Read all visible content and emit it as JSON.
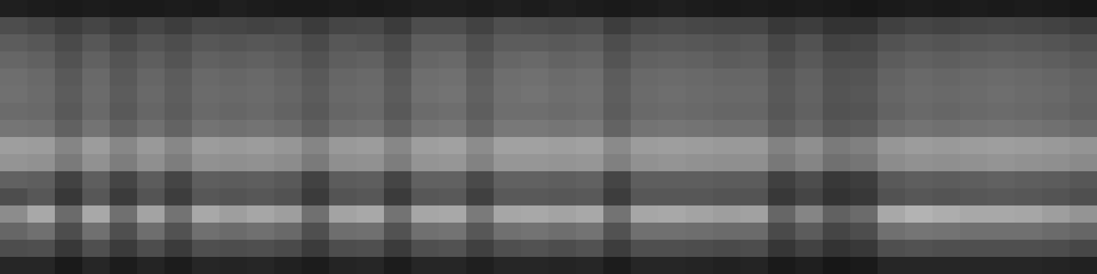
{
  "chart_data": {
    "type": "heatmap",
    "tick_labels": false,
    "zlim": [
      0,
      100
    ],
    "cells": [
      [
        12,
        11,
        10,
        11,
        10,
        10,
        11,
        10,
        12,
        11,
        10,
        10,
        11,
        10,
        11,
        12,
        12,
        11,
        12,
        11,
        12,
        11,
        10,
        11,
        12,
        11,
        10,
        11,
        10,
        11,
        10,
        9,
        10,
        11,
        10,
        11,
        10,
        11,
        10,
        9
      ],
      [
        30,
        28,
        24,
        27,
        23,
        27,
        24,
        28,
        27,
        26,
        27,
        23,
        27,
        28,
        23,
        30,
        30,
        26,
        31,
        30,
        29,
        30,
        24,
        28,
        29,
        28,
        27,
        27,
        22,
        24,
        20,
        20,
        25,
        27,
        26,
        27,
        28,
        27,
        26,
        24
      ],
      [
        36,
        34,
        29,
        34,
        29,
        33,
        30,
        34,
        33,
        34,
        33,
        29,
        34,
        33,
        29,
        37,
        37,
        31,
        36,
        36,
        35,
        36,
        30,
        34,
        35,
        34,
        33,
        34,
        28,
        32,
        26,
        27,
        32,
        34,
        33,
        34,
        35,
        34,
        33,
        31
      ],
      [
        40,
        38,
        32,
        38,
        33,
        37,
        33,
        38,
        37,
        38,
        36,
        32,
        37,
        38,
        32,
        40,
        41,
        34,
        40,
        41,
        39,
        40,
        33,
        38,
        39,
        38,
        36,
        37,
        31,
        35,
        30,
        30,
        36,
        38,
        37,
        38,
        39,
        38,
        37,
        35
      ],
      [
        43,
        41,
        35,
        41,
        35,
        40,
        36,
        41,
        40,
        41,
        39,
        35,
        40,
        41,
        35,
        43,
        44,
        37,
        43,
        44,
        42,
        43,
        36,
        41,
        42,
        41,
        40,
        40,
        34,
        38,
        32,
        33,
        39,
        41,
        40,
        41,
        42,
        41,
        40,
        38
      ],
      [
        44,
        42,
        36,
        42,
        36,
        41,
        37,
        42,
        41,
        42,
        40,
        36,
        41,
        42,
        36,
        44,
        45,
        38,
        44,
        45,
        43,
        44,
        37,
        42,
        43,
        42,
        41,
        41,
        35,
        39,
        33,
        34,
        40,
        42,
        41,
        42,
        43,
        42,
        41,
        39
      ],
      [
        42,
        41,
        35,
        41,
        35,
        40,
        36,
        41,
        40,
        41,
        39,
        35,
        40,
        41,
        35,
        42,
        43,
        37,
        43,
        43,
        42,
        43,
        36,
        41,
        42,
        41,
        40,
        40,
        34,
        38,
        32,
        33,
        39,
        41,
        40,
        41,
        42,
        41,
        40,
        38
      ],
      [
        46,
        45,
        38,
        45,
        39,
        44,
        39,
        45,
        44,
        45,
        43,
        38,
        44,
        45,
        39,
        46,
        47,
        40,
        47,
        47,
        46,
        47,
        39,
        45,
        46,
        45,
        44,
        44,
        37,
        41,
        35,
        36,
        43,
        45,
        44,
        45,
        46,
        45,
        44,
        42
      ],
      [
        62,
        61,
        52,
        61,
        53,
        60,
        53,
        61,
        60,
        61,
        59,
        52,
        60,
        61,
        53,
        62,
        63,
        55,
        63,
        63,
        62,
        63,
        54,
        61,
        62,
        61,
        60,
        60,
        51,
        56,
        48,
        50,
        59,
        61,
        60,
        61,
        62,
        61,
        60,
        58
      ],
      [
        58,
        57,
        48,
        57,
        49,
        56,
        49,
        57,
        56,
        57,
        55,
        48,
        56,
        57,
        49,
        58,
        59,
        51,
        59,
        59,
        58,
        59,
        50,
        57,
        58,
        57,
        56,
        56,
        47,
        52,
        44,
        46,
        55,
        57,
        56,
        57,
        58,
        57,
        56,
        54
      ],
      [
        38,
        37,
        26,
        37,
        27,
        36,
        27,
        37,
        36,
        37,
        35,
        26,
        36,
        37,
        27,
        38,
        38,
        29,
        38,
        38,
        37,
        38,
        27,
        37,
        37,
        37,
        36,
        36,
        25,
        30,
        22,
        24,
        35,
        37,
        36,
        37,
        38,
        37,
        36,
        34
      ],
      [
        30,
        34,
        22,
        34,
        23,
        33,
        24,
        34,
        33,
        34,
        32,
        23,
        33,
        34,
        23,
        34,
        35,
        25,
        35,
        35,
        34,
        35,
        24,
        34,
        34,
        34,
        33,
        33,
        22,
        27,
        20,
        22,
        32,
        34,
        33,
        34,
        35,
        34,
        33,
        31
      ],
      [
        55,
        66,
        42,
        66,
        44,
        64,
        45,
        66,
        62,
        65,
        62,
        44,
        64,
        66,
        45,
        65,
        66,
        48,
        65,
        66,
        64,
        66,
        45,
        65,
        66,
        64,
        62,
        63,
        40,
        52,
        38,
        42,
        66,
        70,
        68,
        66,
        66,
        65,
        62,
        58
      ],
      [
        40,
        44,
        30,
        44,
        31,
        43,
        32,
        44,
        42,
        44,
        41,
        31,
        43,
        44,
        32,
        44,
        45,
        34,
        44,
        45,
        43,
        45,
        32,
        44,
        44,
        43,
        42,
        42,
        29,
        36,
        27,
        30,
        44,
        46,
        45,
        44,
        44,
        44,
        42,
        40
      ],
      [
        30,
        31,
        22,
        31,
        23,
        30,
        23,
        31,
        30,
        31,
        29,
        23,
        30,
        31,
        23,
        31,
        32,
        25,
        31,
        32,
        30,
        32,
        24,
        31,
        31,
        30,
        29,
        30,
        21,
        26,
        20,
        22,
        31,
        32,
        31,
        31,
        31,
        31,
        30,
        28
      ],
      [
        15,
        15,
        10,
        15,
        11,
        14,
        11,
        15,
        14,
        15,
        13,
        11,
        14,
        15,
        11,
        15,
        15,
        12,
        15,
        15,
        14,
        15,
        11,
        15,
        15,
        14,
        13,
        14,
        10,
        12,
        9,
        10,
        15,
        15,
        15,
        15,
        15,
        15,
        14,
        13
      ]
    ]
  }
}
